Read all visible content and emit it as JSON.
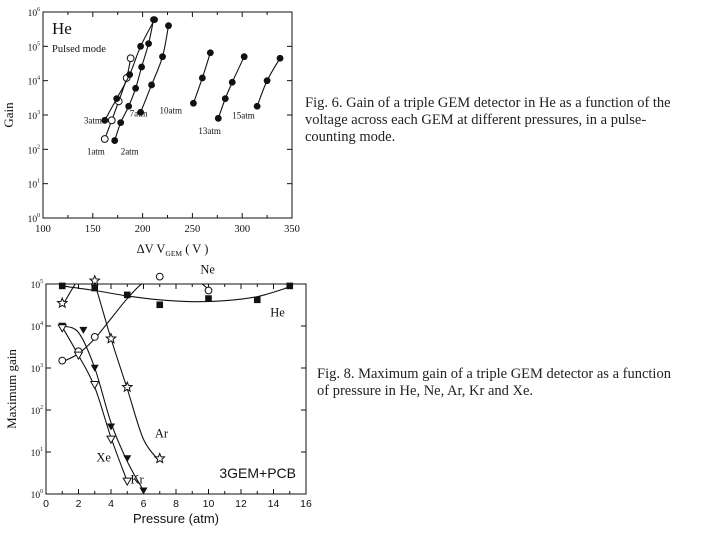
{
  "chart_data": [
    {
      "type": "scatter",
      "title": "",
      "xlabel": "ΔV",
      "xlabel_sub": "GEM",
      "xlabel_unit": "( V )",
      "ylabel": "Gain",
      "xlim": [
        100,
        350
      ],
      "ylim_log10": [
        0,
        6
      ],
      "x_ticks": [
        "100",
        "150",
        "200",
        "250",
        "300",
        "350"
      ],
      "y_ticks": [
        {
          "base": "10",
          "exp": "0"
        },
        {
          "base": "10",
          "exp": "1"
        },
        {
          "base": "10",
          "exp": "2"
        },
        {
          "base": "10",
          "exp": "3"
        },
        {
          "base": "10",
          "exp": "4"
        },
        {
          "base": "10",
          "exp": "5"
        },
        {
          "base": "10",
          "exp": "6"
        }
      ],
      "panel_label": "He",
      "mode_label": "Pulsed mode",
      "series": [
        {
          "name": "1atm",
          "marker": "open",
          "x": [
            162,
            169,
            176,
            184,
            188
          ],
          "y": [
            200,
            700,
            2500,
            12000,
            45000
          ]
        },
        {
          "name": "2atm",
          "marker": "filled",
          "x": [
            172,
            178,
            186,
            193,
            199,
            206,
            211
          ],
          "y": [
            180,
            600,
            1800,
            6000,
            25000,
            120000,
            600000
          ]
        },
        {
          "name": "3atm",
          "marker": "filled",
          "x": [
            162,
            174,
            187,
            198,
            212
          ],
          "y": [
            700,
            3000,
            15000,
            100000,
            600000
          ]
        },
        {
          "name": "7atm",
          "marker": "filled",
          "x": [
            198,
            209,
            220,
            226
          ],
          "y": [
            1200,
            7500,
            50000,
            400000
          ]
        },
        {
          "name": "10atm",
          "marker": "filled",
          "x": [
            251,
            260,
            268
          ],
          "y": [
            2200,
            12000,
            65000
          ]
        },
        {
          "name": "13atm",
          "marker": "filled",
          "x": [
            276,
            283,
            290,
            302
          ],
          "y": [
            800,
            3000,
            9000,
            50000
          ]
        },
        {
          "name": "15atm",
          "marker": "filled",
          "x": [
            315,
            325,
            338
          ],
          "y": [
            1800,
            10000,
            45000
          ]
        }
      ],
      "annotations": [
        {
          "text": "3atm",
          "x": 141,
          "y": 560
        },
        {
          "text": "1atm",
          "x": 144,
          "y": 70
        },
        {
          "text": "2atm",
          "x": 178,
          "y": 70
        },
        {
          "text": "7atm",
          "x": 187,
          "y": 900
        },
        {
          "text": "10atm",
          "x": 217,
          "y": 1100
        },
        {
          "text": "13atm",
          "x": 256,
          "y": 280
        },
        {
          "text": "15atm",
          "x": 290,
          "y": 800
        }
      ]
    },
    {
      "type": "scatter",
      "title": "",
      "xlabel": "Pressure (atm)",
      "ylabel": "Maximum gain",
      "xlim": [
        0,
        16
      ],
      "ylim_log10": [
        0,
        5
      ],
      "x_ticks": [
        "0",
        "2",
        "4",
        "6",
        "8",
        "10",
        "12",
        "14",
        "16"
      ],
      "y_ticks": [
        {
          "base": "10",
          "exp": "0"
        },
        {
          "base": "10",
          "exp": "1"
        },
        {
          "base": "10",
          "exp": "2"
        },
        {
          "base": "10",
          "exp": "3"
        },
        {
          "base": "10",
          "exp": "4"
        },
        {
          "base": "10",
          "exp": "5"
        }
      ],
      "panel_label": "3GEM+PCB",
      "series": [
        {
          "name": "He",
          "marker": "filled-square",
          "x": [
            1,
            3,
            5,
            7,
            10,
            13,
            15
          ],
          "y": [
            90000,
            80000,
            55000,
            32000,
            45000,
            42000,
            90000
          ],
          "curve": {
            "x": [
              1,
              3,
              5,
              7,
              9,
              11,
              13,
              15
            ],
            "y": [
              90000,
              70000,
              52000,
              42000,
              38000,
              40000,
              50000,
              85000
            ]
          }
        },
        {
          "name": "Ne",
          "marker": "open-circle",
          "x": [
            1,
            2,
            3,
            7,
            10
          ],
          "y": [
            1500,
            2500,
            5500,
            150000,
            70000
          ],
          "curve": {
            "x": [
              1,
              2,
              3,
              4,
              5,
              6,
              7,
              8,
              9,
              10
            ],
            "y": [
              1400,
              2200,
              5000,
              15000,
              45000,
              110000,
              170000,
              200000,
              150000,
              75000
            ]
          }
        },
        {
          "name": "Ar",
          "marker": "open-star",
          "x": [
            1,
            3,
            4,
            5,
            7
          ],
          "y": [
            35000,
            120000,
            5000,
            350,
            7
          ],
          "curve": {
            "x": [
              1,
              2,
              2.6,
              3,
              4,
              5,
              6,
              7
            ],
            "y": [
              30000,
              130000,
              180000,
              100000,
              5000,
              320,
              20,
              6
            ]
          }
        },
        {
          "name": "Kr",
          "marker": "filled-triangle",
          "x": [
            1,
            2.3,
            3,
            4,
            5,
            6
          ],
          "y": [
            10000,
            8000,
            1000,
            40,
            7,
            1.2
          ],
          "curve": {
            "x": [
              1,
              2,
              3,
              4,
              5,
              6
            ],
            "y": [
              10000,
              7000,
              1000,
              50,
              6,
              1.2
            ]
          }
        },
        {
          "name": "Xe",
          "marker": "open-triangle",
          "x": [
            1,
            2,
            3,
            4,
            5
          ],
          "y": [
            9000,
            2000,
            400,
            20,
            2
          ],
          "curve": {
            "x": [
              1,
              2,
              3,
              4,
              5
            ],
            "y": [
              9500,
              2000,
              350,
              22,
              2
            ]
          }
        }
      ],
      "annotations": [
        {
          "text": "Ne",
          "x": 9.5,
          "y": 180000
        },
        {
          "text": "He",
          "x": 13.8,
          "y": 17000
        },
        {
          "text": "Ar",
          "x": 6.7,
          "y": 22
        },
        {
          "text": "Xe",
          "x": 3.1,
          "y": 6
        },
        {
          "text": "Kr",
          "x": 5.2,
          "y": 1.8
        }
      ]
    }
  ],
  "captions": {
    "fig6": [
      "Fig. 6.  Gain of a triple GEM detector in He as a function of the",
      "voltage across each GEM at different pressures, in a pulse-",
      "counting mode."
    ],
    "fig8": [
      "Fig. 8.  Maximum gain of a triple GEM detector as a function",
      "of pressure in He, Ne, Ar, Kr and Xe."
    ]
  }
}
